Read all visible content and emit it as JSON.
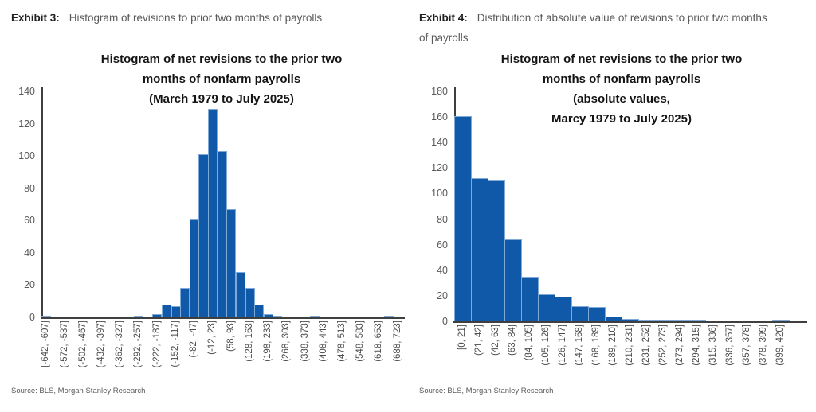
{
  "colors": {
    "bar_fill": "#0F59A8",
    "bar_edge": "#7FA9D6",
    "axis_line": "#3F3F3F",
    "tick_text": "#58595B",
    "title_text": "#141414"
  },
  "panels": [
    {
      "exhibit_label": "Exhibit 3:",
      "exhibit_desc": "Histogram of revisions to prior two months of payrolls",
      "source": "Source: BLS, Morgan Stanley Research"
    },
    {
      "exhibit_label": "Exhibit 4:",
      "exhibit_desc": "Distribution of absolute value of revisions to prior two months of payrolls",
      "source": "Source: BLS, Morgan Stanley Research"
    }
  ],
  "chart_data": [
    {
      "type": "bar",
      "title": "Histogram of net revisions to the prior two months of nonfarm payrolls (March 1979 to July 2025)",
      "title_lines": [
        "Histogram of net revisions to the prior two",
        "months of nonfarm payrolls",
        "(March 1979 to July 2025)"
      ],
      "xlabel": "",
      "ylabel": "",
      "ylim": [
        0,
        140
      ],
      "ytick_step": 20,
      "grid": false,
      "num_bins": 39,
      "bin_width_value": 35,
      "values": [
        1,
        0,
        0,
        0,
        0,
        0,
        0,
        0,
        0,
        0,
        1,
        0,
        2,
        8,
        7,
        18,
        61,
        101,
        129,
        103,
        67,
        28,
        18,
        8,
        2,
        1,
        0,
        0,
        0,
        1,
        0,
        0,
        0,
        0,
        0,
        0,
        0,
        1,
        0
      ],
      "tick_labels": [
        "[-642, -607]",
        "(-572, -537]",
        "(-502, -467]",
        "(-432, -397]",
        "(-362, -327]",
        "(-292, -257]",
        "(-222, -187]",
        "(-152, -117]",
        "(-82, -47]",
        "(-12, 23]",
        "(58, 93]",
        "(128, 163]",
        "(198, 233]",
        "(268, 303]",
        "(338, 373]",
        "(408, 443]",
        "(478, 513]",
        "(548, 583]",
        "(618, 653]",
        "(688, 723]"
      ],
      "tick_start_bin": 0,
      "tick_bin_step": 2
    },
    {
      "type": "bar",
      "title": "Histogram of net revisions to the prior two months of nonfarm payrolls (absolute values, Marcy 1979 to July 2025)",
      "title_lines": [
        "Histogram of net revisions to the prior two",
        "months of nonfarm payrolls",
        "(absolute values,",
        "Marcy 1979 to July 2025)"
      ],
      "xlabel": "",
      "ylabel": "",
      "ylim": [
        0,
        180
      ],
      "ytick_step": 20,
      "grid": false,
      "num_bins": 20,
      "bin_width_value": 21,
      "values": [
        161,
        112,
        111,
        64,
        35,
        21,
        19,
        12,
        11,
        4,
        2,
        1,
        1,
        1,
        1,
        0,
        0,
        0,
        0,
        1
      ],
      "tick_labels": [
        "[0, 21]",
        "(21, 42]",
        "(42, 63]",
        "(63, 84]",
        "(84, 105]",
        "(105, 126]",
        "(126, 147]",
        "(147, 168]",
        "(168, 189]",
        "(189, 210]",
        "(210, 231]",
        "(231, 252]",
        "(252, 273]",
        "(273, 294]",
        "(294, 315]",
        "(315, 336]",
        "(336, 357]",
        "(357, 378]",
        "(378, 399]",
        "(399, 420]"
      ],
      "tick_start_bin": 0,
      "tick_bin_step": 1
    }
  ]
}
